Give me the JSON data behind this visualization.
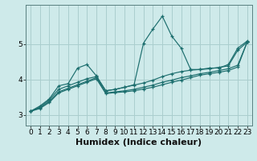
{
  "xlabel": "Humidex (Indice chaleur)",
  "bg_color": "#ceeaea",
  "line_color": "#1c6e6e",
  "grid_color": "#aacece",
  "x_data": [
    0,
    1,
    2,
    3,
    4,
    5,
    6,
    7,
    8,
    9,
    10,
    11,
    12,
    13,
    14,
    15,
    16,
    17,
    18,
    19,
    20,
    21,
    22,
    23
  ],
  "series": {
    "line1": [
      3.1,
      3.25,
      3.45,
      3.82,
      3.88,
      4.32,
      4.42,
      4.1,
      3.68,
      3.72,
      3.78,
      3.85,
      5.02,
      5.42,
      5.78,
      5.22,
      4.88,
      4.28,
      4.28,
      4.32,
      4.32,
      4.42,
      4.88,
      5.08
    ],
    "line2": [
      3.1,
      3.22,
      3.42,
      3.72,
      3.82,
      3.92,
      4.02,
      4.08,
      3.68,
      3.72,
      3.78,
      3.84,
      3.9,
      3.98,
      4.08,
      4.16,
      4.22,
      4.26,
      4.28,
      4.3,
      4.34,
      4.38,
      4.82,
      5.05
    ],
    "line3": [
      3.1,
      3.2,
      3.38,
      3.65,
      3.75,
      3.85,
      3.95,
      4.05,
      3.62,
      3.65,
      3.68,
      3.72,
      3.78,
      3.84,
      3.92,
      3.98,
      4.05,
      4.1,
      4.16,
      4.2,
      4.25,
      4.3,
      4.4,
      5.05
    ],
    "line4": [
      3.1,
      3.18,
      3.35,
      3.62,
      3.72,
      3.82,
      3.92,
      4.02,
      3.6,
      3.63,
      3.65,
      3.68,
      3.73,
      3.78,
      3.85,
      3.92,
      3.98,
      4.05,
      4.12,
      4.16,
      4.2,
      4.25,
      4.35,
      5.05
    ]
  },
  "ylim": [
    2.7,
    6.1
  ],
  "xlim": [
    -0.5,
    23.5
  ],
  "yticks": [
    3,
    4,
    5
  ],
  "xticks": [
    0,
    1,
    2,
    3,
    4,
    5,
    6,
    7,
    8,
    9,
    10,
    11,
    12,
    13,
    14,
    15,
    16,
    17,
    18,
    19,
    20,
    21,
    22,
    23
  ],
  "xlabel_fontsize": 8,
  "tick_fontsize": 6.5,
  "figwidth": 3.2,
  "figheight": 2.0,
  "dpi": 100
}
